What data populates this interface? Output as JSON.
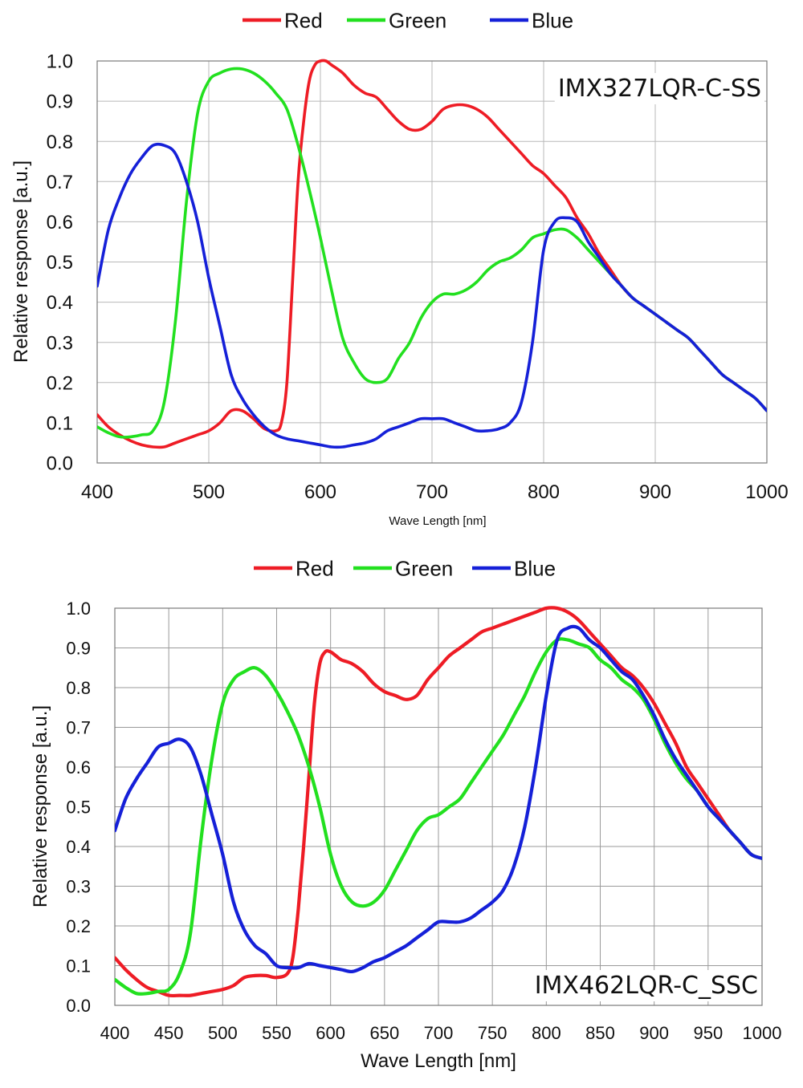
{
  "chart_data": [
    {
      "type": "line",
      "title": "",
      "annotation": "IMX327LQR-C-SS",
      "xlabel": "Wave Length [nm]",
      "ylabel": "Relative response [a.u.]",
      "xlim": [
        400,
        1000
      ],
      "ylim": [
        0.0,
        1.0
      ],
      "xticks": [
        400,
        500,
        600,
        700,
        800,
        900,
        1000
      ],
      "yticks": [
        0.0,
        0.1,
        0.2,
        0.3,
        0.4,
        0.5,
        0.6,
        0.7,
        0.8,
        0.9,
        1.0
      ],
      "xtick_labels": [
        "400",
        "500",
        "600",
        "700",
        "800",
        "900",
        "1000"
      ],
      "ytick_labels": [
        "0.0",
        "0.1",
        "0.2",
        "0.3",
        "0.4",
        "0.5",
        "0.6",
        "0.7",
        "0.8",
        "0.9",
        "1.0"
      ],
      "grid": true,
      "legend": "top-center",
      "series": [
        {
          "name": "Red",
          "color": "#ee1c25",
          "x": [
            400,
            410,
            420,
            430,
            440,
            450,
            460,
            470,
            480,
            490,
            500,
            510,
            520,
            530,
            540,
            550,
            560,
            565,
            570,
            575,
            580,
            585,
            590,
            595,
            600,
            605,
            610,
            620,
            630,
            640,
            650,
            660,
            670,
            680,
            690,
            700,
            710,
            720,
            730,
            740,
            750,
            760,
            770,
            780,
            790,
            800,
            810,
            820,
            830,
            840,
            850,
            860,
            870,
            880,
            890,
            900,
            910,
            920,
            930,
            940,
            950,
            960,
            970,
            980,
            990,
            1000
          ],
          "y": [
            0.12,
            0.09,
            0.07,
            0.055,
            0.045,
            0.04,
            0.04,
            0.05,
            0.06,
            0.07,
            0.08,
            0.1,
            0.13,
            0.13,
            0.11,
            0.085,
            0.08,
            0.1,
            0.2,
            0.45,
            0.7,
            0.85,
            0.95,
            0.99,
            1.0,
            1.0,
            0.99,
            0.97,
            0.94,
            0.92,
            0.91,
            0.88,
            0.85,
            0.83,
            0.83,
            0.85,
            0.88,
            0.89,
            0.89,
            0.88,
            0.86,
            0.83,
            0.8,
            0.77,
            0.74,
            0.72,
            0.69,
            0.66,
            0.61,
            0.57,
            0.52,
            0.48,
            0.44,
            0.41,
            0.39,
            0.37,
            0.35,
            0.33,
            0.31,
            0.28,
            0.25,
            0.22,
            0.2,
            0.18,
            0.16,
            0.13
          ]
        },
        {
          "name": "Green",
          "color": "#22e01f",
          "x": [
            400,
            410,
            420,
            430,
            440,
            450,
            460,
            470,
            480,
            490,
            500,
            510,
            520,
            530,
            540,
            550,
            560,
            570,
            580,
            590,
            600,
            610,
            620,
            630,
            640,
            650,
            660,
            670,
            680,
            690,
            700,
            710,
            720,
            730,
            740,
            750,
            760,
            770,
            780,
            790,
            800,
            810,
            820,
            830,
            840,
            850,
            860,
            870,
            880,
            890,
            900,
            910,
            920,
            930,
            940,
            950,
            960,
            970,
            980,
            990,
            1000
          ],
          "y": [
            0.09,
            0.075,
            0.065,
            0.065,
            0.07,
            0.08,
            0.15,
            0.35,
            0.65,
            0.87,
            0.95,
            0.97,
            0.98,
            0.98,
            0.97,
            0.95,
            0.92,
            0.88,
            0.79,
            0.68,
            0.56,
            0.43,
            0.31,
            0.25,
            0.21,
            0.2,
            0.21,
            0.26,
            0.3,
            0.36,
            0.4,
            0.42,
            0.42,
            0.43,
            0.45,
            0.48,
            0.5,
            0.51,
            0.53,
            0.56,
            0.57,
            0.58,
            0.58,
            0.56,
            0.53,
            0.5,
            0.47,
            0.44,
            0.41,
            0.39,
            0.37,
            0.35,
            0.33,
            0.31,
            0.28,
            0.25,
            0.22,
            0.2,
            0.18,
            0.16,
            0.13
          ]
        },
        {
          "name": "Blue",
          "color": "#1520d8",
          "x": [
            400,
            410,
            420,
            430,
            440,
            450,
            460,
            470,
            480,
            490,
            500,
            510,
            520,
            530,
            540,
            550,
            560,
            570,
            580,
            590,
            600,
            610,
            620,
            630,
            640,
            650,
            660,
            670,
            680,
            690,
            700,
            710,
            720,
            730,
            740,
            750,
            760,
            770,
            780,
            790,
            800,
            810,
            820,
            830,
            840,
            850,
            860,
            870,
            880,
            890,
            900,
            910,
            920,
            930,
            940,
            950,
            960,
            970,
            980,
            990,
            1000
          ],
          "y": [
            0.44,
            0.58,
            0.66,
            0.72,
            0.76,
            0.79,
            0.79,
            0.77,
            0.7,
            0.6,
            0.46,
            0.34,
            0.22,
            0.16,
            0.12,
            0.09,
            0.07,
            0.06,
            0.055,
            0.05,
            0.045,
            0.04,
            0.04,
            0.045,
            0.05,
            0.06,
            0.08,
            0.09,
            0.1,
            0.11,
            0.11,
            0.11,
            0.1,
            0.09,
            0.08,
            0.08,
            0.085,
            0.1,
            0.15,
            0.3,
            0.53,
            0.6,
            0.61,
            0.6,
            0.55,
            0.51,
            0.47,
            0.44,
            0.41,
            0.39,
            0.37,
            0.35,
            0.33,
            0.31,
            0.28,
            0.25,
            0.22,
            0.2,
            0.18,
            0.16,
            0.13
          ]
        }
      ]
    },
    {
      "type": "line",
      "title": "",
      "annotation": "IMX462LQR-C_SSC",
      "xlabel": "Wave Length [nm]",
      "ylabel": "Relative response [a.u.]",
      "xlim": [
        400,
        1000
      ],
      "ylim": [
        0.0,
        1.0
      ],
      "xticks": [
        400,
        450,
        500,
        550,
        600,
        650,
        700,
        750,
        800,
        850,
        900,
        950,
        1000
      ],
      "yticks": [
        0.0,
        0.1,
        0.2,
        0.3,
        0.4,
        0.5,
        0.6,
        0.7,
        0.8,
        0.9,
        1.0
      ],
      "xtick_labels": [
        "400",
        "450",
        "500",
        "550",
        "600",
        "650",
        "700",
        "750",
        "800",
        "850",
        "900",
        "950",
        "1000"
      ],
      "ytick_labels": [
        "0.0",
        "0.1",
        "0.2",
        "0.3",
        "0.4",
        "0.5",
        "0.6",
        "0.7",
        "0.8",
        "0.9",
        "1.0"
      ],
      "grid": true,
      "legend": "top-center",
      "series": [
        {
          "name": "Red",
          "color": "#ee1c25",
          "x": [
            400,
            410,
            420,
            430,
            440,
            450,
            460,
            470,
            480,
            490,
            500,
            510,
            520,
            530,
            540,
            550,
            560,
            565,
            570,
            575,
            580,
            585,
            590,
            595,
            600,
            605,
            610,
            620,
            630,
            640,
            650,
            660,
            670,
            680,
            690,
            700,
            710,
            720,
            730,
            740,
            750,
            760,
            770,
            780,
            790,
            800,
            810,
            820,
            830,
            840,
            850,
            860,
            870,
            880,
            890,
            900,
            910,
            920,
            930,
            940,
            950,
            960,
            970,
            980,
            990,
            1000
          ],
          "y": [
            0.12,
            0.09,
            0.065,
            0.045,
            0.035,
            0.025,
            0.025,
            0.025,
            0.03,
            0.035,
            0.04,
            0.05,
            0.07,
            0.075,
            0.075,
            0.07,
            0.08,
            0.12,
            0.24,
            0.4,
            0.58,
            0.76,
            0.86,
            0.89,
            0.89,
            0.88,
            0.87,
            0.86,
            0.84,
            0.81,
            0.79,
            0.78,
            0.77,
            0.78,
            0.82,
            0.85,
            0.88,
            0.9,
            0.92,
            0.94,
            0.95,
            0.96,
            0.97,
            0.98,
            0.99,
            1.0,
            1.0,
            0.99,
            0.97,
            0.94,
            0.91,
            0.88,
            0.85,
            0.83,
            0.8,
            0.76,
            0.71,
            0.66,
            0.6,
            0.56,
            0.52,
            0.48,
            0.44,
            0.41,
            0.38,
            0.37
          ]
        },
        {
          "name": "Green",
          "color": "#22e01f",
          "x": [
            400,
            410,
            420,
            430,
            440,
            450,
            460,
            470,
            480,
            490,
            500,
            510,
            520,
            530,
            540,
            550,
            560,
            570,
            580,
            590,
            600,
            610,
            620,
            630,
            640,
            650,
            660,
            670,
            680,
            690,
            700,
            710,
            720,
            730,
            740,
            750,
            760,
            770,
            780,
            790,
            800,
            810,
            820,
            830,
            840,
            850,
            860,
            870,
            880,
            890,
            900,
            910,
            920,
            930,
            940,
            950,
            960,
            970,
            980,
            990,
            1000
          ],
          "y": [
            0.065,
            0.045,
            0.03,
            0.03,
            0.035,
            0.04,
            0.08,
            0.18,
            0.42,
            0.62,
            0.76,
            0.82,
            0.84,
            0.85,
            0.83,
            0.79,
            0.74,
            0.68,
            0.6,
            0.5,
            0.38,
            0.3,
            0.26,
            0.25,
            0.26,
            0.29,
            0.34,
            0.39,
            0.44,
            0.47,
            0.48,
            0.5,
            0.52,
            0.56,
            0.6,
            0.64,
            0.68,
            0.73,
            0.78,
            0.84,
            0.89,
            0.92,
            0.92,
            0.91,
            0.9,
            0.87,
            0.85,
            0.82,
            0.8,
            0.77,
            0.72,
            0.66,
            0.61,
            0.57,
            0.54,
            0.5,
            0.47,
            0.44,
            0.41,
            0.38,
            0.37
          ]
        },
        {
          "name": "Blue",
          "color": "#1520d8",
          "x": [
            400,
            410,
            420,
            430,
            440,
            450,
            460,
            470,
            480,
            490,
            500,
            510,
            520,
            530,
            540,
            550,
            560,
            570,
            580,
            590,
            600,
            610,
            620,
            630,
            640,
            650,
            660,
            670,
            680,
            690,
            700,
            710,
            720,
            730,
            740,
            750,
            760,
            770,
            780,
            790,
            800,
            810,
            820,
            830,
            840,
            850,
            860,
            870,
            880,
            890,
            900,
            910,
            920,
            930,
            940,
            950,
            960,
            970,
            980,
            990,
            1000
          ],
          "y": [
            0.44,
            0.52,
            0.57,
            0.61,
            0.65,
            0.66,
            0.67,
            0.65,
            0.58,
            0.48,
            0.38,
            0.26,
            0.19,
            0.15,
            0.13,
            0.1,
            0.095,
            0.095,
            0.105,
            0.1,
            0.095,
            0.09,
            0.085,
            0.095,
            0.11,
            0.12,
            0.135,
            0.15,
            0.17,
            0.19,
            0.21,
            0.21,
            0.21,
            0.22,
            0.24,
            0.26,
            0.29,
            0.35,
            0.45,
            0.6,
            0.78,
            0.92,
            0.95,
            0.95,
            0.92,
            0.9,
            0.87,
            0.84,
            0.82,
            0.78,
            0.73,
            0.67,
            0.62,
            0.58,
            0.54,
            0.5,
            0.47,
            0.44,
            0.41,
            0.38,
            0.37
          ]
        }
      ]
    }
  ]
}
